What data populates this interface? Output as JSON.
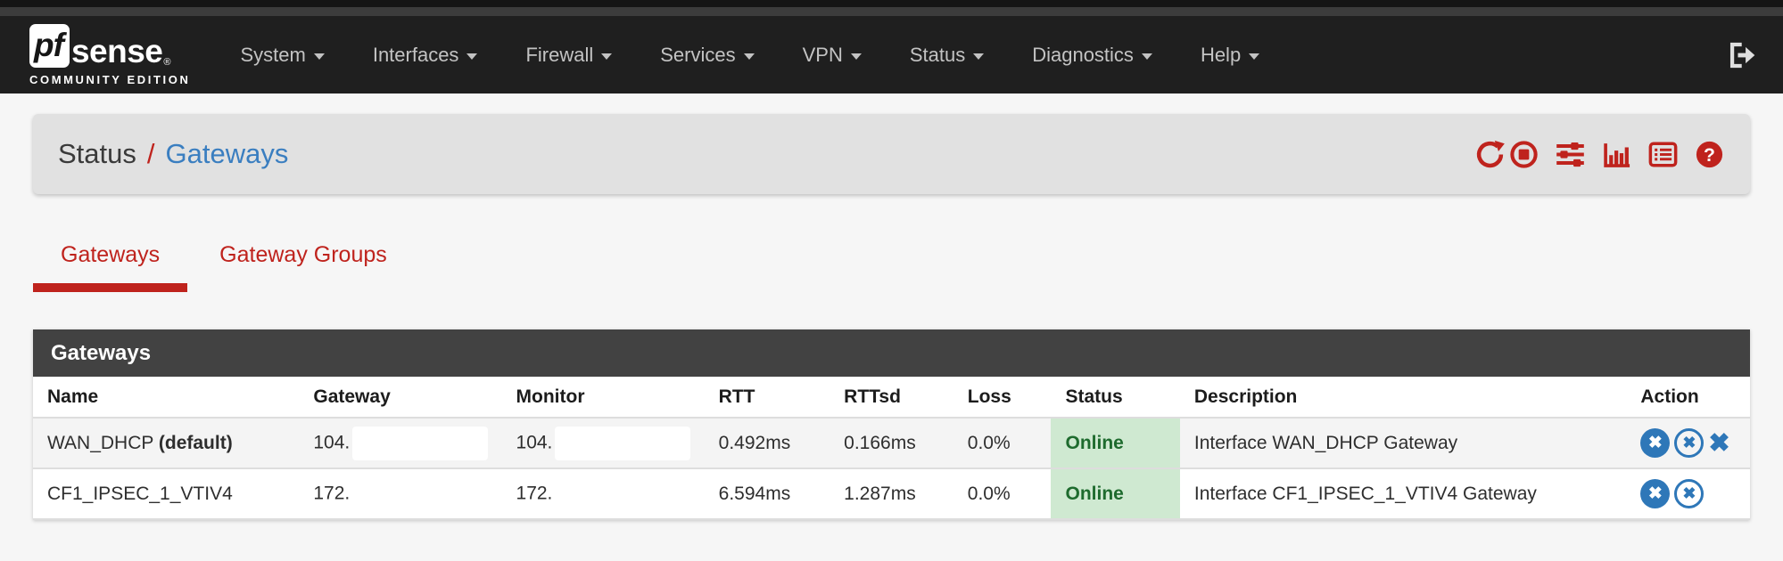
{
  "navbar": {
    "brand": {
      "pf": "pf",
      "sense": "sense",
      "registered": "®",
      "edition": "COMMUNITY EDITION"
    },
    "items": [
      {
        "label": "System"
      },
      {
        "label": "Interfaces"
      },
      {
        "label": "Firewall"
      },
      {
        "label": "Services"
      },
      {
        "label": "VPN"
      },
      {
        "label": "Status"
      },
      {
        "label": "Diagnostics"
      },
      {
        "label": "Help"
      }
    ],
    "logout_icon": "sign-out-icon"
  },
  "breadcrumb": {
    "section": "Status",
    "separator": "/",
    "page": "Gateways"
  },
  "header_icons": [
    {
      "name": "refresh-icon"
    },
    {
      "name": "stop-icon"
    },
    {
      "name": "settings-sliders-icon"
    },
    {
      "name": "monitoring-graph-icon"
    },
    {
      "name": "view-log-icon"
    },
    {
      "name": "help-icon"
    }
  ],
  "tabs": [
    {
      "label": "Gateways",
      "active": true
    },
    {
      "label": "Gateway Groups",
      "active": false
    }
  ],
  "panel": {
    "title": "Gateways"
  },
  "table": {
    "columns": [
      "Name",
      "Gateway",
      "Monitor",
      "RTT",
      "RTTsd",
      "Loss",
      "Status",
      "Description",
      "Action"
    ],
    "rows": [
      {
        "name": "WAN_DHCP",
        "name_suffix": "(default)",
        "gateway": "104.",
        "gateway_redacted": true,
        "monitor": "104.",
        "monitor_redacted": true,
        "rtt": "0.492ms",
        "rttsd": "0.166ms",
        "loss": "0.0%",
        "status": "Online",
        "description": "Interface WAN_DHCP Gateway",
        "actions": [
          "times-circle-solid",
          "times-circle-outline",
          "times"
        ]
      },
      {
        "name": "CF1_IPSEC_1_VTIV4",
        "name_suffix": "",
        "gateway": "172.",
        "gateway_redacted": true,
        "monitor": "172.",
        "monitor_redacted": true,
        "rtt": "6.594ms",
        "rttsd": "1.287ms",
        "loss": "0.0%",
        "status": "Online",
        "description": "Interface CF1_IPSEC_1_VTIV4 Gateway",
        "actions": [
          "times-circle-solid",
          "times-circle-outline"
        ]
      }
    ]
  },
  "action_glyph": "✖",
  "colors": {
    "accent_red": "#bf231d",
    "link_blue": "#3a7ec0",
    "action_blue": "#2e77b8",
    "status_green_bg": "#cfe9d1",
    "status_green_text": "#1e6b2e",
    "navbar_bg": "#1f1f1f",
    "panel_header_bg": "#424242",
    "breadcrumb_bg": "#e1e1e1",
    "page_bg": "#f6f6f6"
  }
}
